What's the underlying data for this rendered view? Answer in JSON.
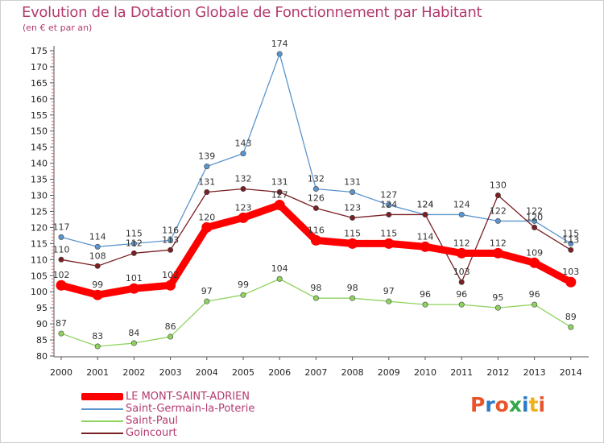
{
  "header": {
    "title": "Evolution de la Dotation Globale de Fonctionnement par Habitant",
    "subtitle": "(en € et par an)"
  },
  "logo": {
    "text": "Proxiti",
    "colors": [
      "#e8552b",
      "#2a7ac8",
      "#e8552b",
      "#33a84a",
      "#2a7ac8",
      "#f0b017",
      "#e8552b"
    ]
  },
  "chart_data": {
    "type": "line",
    "title": "Evolution de la Dotation Globale de Fonctionnement par Habitant",
    "subtitle": "(en € et par an)",
    "x": [
      "2000",
      "2001",
      "2002",
      "2003",
      "2004",
      "2005",
      "2006",
      "2007",
      "2008",
      "2009",
      "2010",
      "2011",
      "2012",
      "2013",
      "2014"
    ],
    "ylim": [
      80,
      175
    ],
    "yticks": [
      80,
      85,
      90,
      95,
      100,
      105,
      110,
      115,
      120,
      125,
      130,
      135,
      140,
      145,
      150,
      155,
      160,
      165,
      170,
      175
    ],
    "grid": false,
    "legend_position": "bottom-left",
    "series": [
      {
        "name": "LE MONT-SAINT-ADRIEN",
        "color": "#ff0000",
        "values": [
          102,
          99,
          101,
          102,
          120,
          123,
          127,
          116,
          115,
          115,
          114,
          112,
          112,
          109,
          103
        ]
      },
      {
        "name": "Saint-Germain-la-Poterie",
        "color": "#5b95cd",
        "values": [
          117,
          114,
          115,
          116,
          139,
          143,
          174,
          132,
          131,
          127,
          124,
          124,
          122,
          122,
          115
        ]
      },
      {
        "name": "Saint-Paul",
        "color": "#8fd35f",
        "values": [
          87,
          83,
          84,
          86,
          97,
          99,
          104,
          98,
          98,
          97,
          96,
          96,
          95,
          96,
          89
        ]
      },
      {
        "name": "Goincourt",
        "color": "#7a1f24",
        "values": [
          110,
          108,
          112,
          113,
          131,
          132,
          131,
          126,
          123,
          124,
          124,
          103,
          130,
          120,
          113
        ]
      }
    ],
    "data_labels": [
      {
        "series": "LE MONT-SAINT-ADRIEN",
        "labels": [
          "102",
          "99",
          "101",
          "102",
          "120",
          "123",
          "127",
          "116",
          "115",
          "115",
          "114",
          "112",
          "112",
          "109",
          "103"
        ]
      },
      {
        "series": "Saint-Germain-la-Poterie",
        "labels": [
          "117",
          "114",
          "115",
          "116",
          "139",
          "143",
          "174",
          "132",
          "131",
          "127",
          "124",
          "124",
          "122",
          "122",
          "115"
        ]
      },
      {
        "series": "Saint-Paul",
        "labels": [
          "87",
          "83",
          "84",
          "86",
          "97",
          "99",
          "104",
          "98",
          "98",
          "97",
          "96",
          "96",
          "95",
          "96",
          "89"
        ]
      },
      {
        "series": "Goincourt",
        "labels": [
          "110",
          "108",
          "112",
          "113",
          "131",
          "132",
          "131",
          "126",
          "123",
          "124",
          "124",
          "103",
          "130",
          "120",
          "113"
        ]
      }
    ]
  }
}
